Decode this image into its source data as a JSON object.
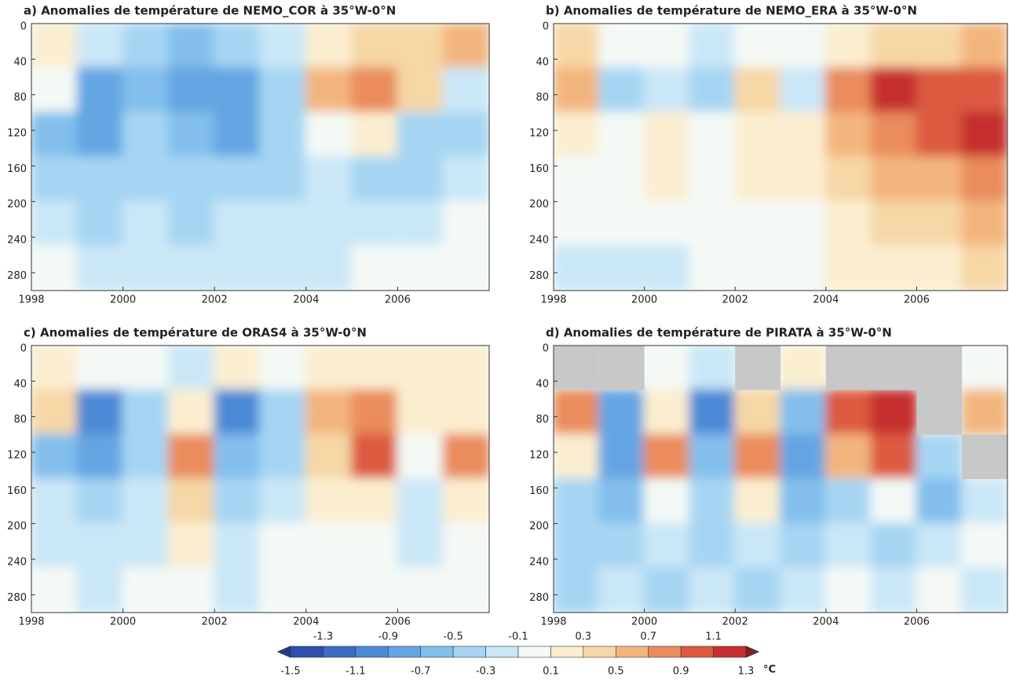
{
  "chart_data": [
    {
      "type": "heatmap",
      "title": "a) Anomalies de température de NEMO_COR à 35°W-0°N",
      "x": [
        1998.5,
        1999.5,
        2000.5,
        2001.5,
        2002.5,
        2003.5,
        2004.5,
        2005.5,
        2006.5,
        2007.5
      ],
      "y": [
        25,
        75,
        125,
        175,
        225,
        275
      ],
      "values": [
        [
          0.3,
          -0.1,
          -0.3,
          -0.5,
          -0.3,
          -0.1,
          0.3,
          0.5,
          0.5,
          0.7
        ],
        [
          0.1,
          -0.7,
          -0.5,
          -0.7,
          -0.7,
          -0.3,
          0.7,
          0.9,
          0.5,
          -0.1
        ],
        [
          -0.5,
          -0.7,
          -0.3,
          -0.5,
          -0.7,
          -0.3,
          0.1,
          0.3,
          -0.3,
          -0.3
        ],
        [
          -0.3,
          -0.3,
          -0.3,
          -0.3,
          -0.3,
          -0.3,
          -0.1,
          -0.3,
          -0.3,
          -0.1
        ],
        [
          -0.1,
          -0.3,
          -0.1,
          -0.3,
          -0.1,
          -0.1,
          -0.1,
          -0.1,
          -0.1,
          0.1
        ],
        [
          0.1,
          -0.1,
          -0.1,
          -0.1,
          -0.1,
          -0.1,
          -0.1,
          0.1,
          0.1,
          0.1
        ]
      ],
      "xlim": [
        1998,
        2008
      ],
      "ylim": [
        0,
        300
      ],
      "y_inverted": true,
      "xticks": [
        1998,
        2000,
        2002,
        2004,
        2006
      ],
      "yticks": [
        0,
        40,
        80,
        120,
        160,
        200,
        240,
        280
      ]
    },
    {
      "type": "heatmap",
      "title": "b) Anomalies de température de NEMO_ERA à 35°W-0°N",
      "x": [
        1998.5,
        1999.5,
        2000.5,
        2001.5,
        2002.5,
        2003.5,
        2004.5,
        2005.5,
        2006.5,
        2007.5
      ],
      "y": [
        25,
        75,
        125,
        175,
        225,
        275
      ],
      "values": [
        [
          0.5,
          0.1,
          0.1,
          -0.1,
          0.1,
          0.1,
          0.3,
          0.5,
          0.5,
          0.7
        ],
        [
          0.7,
          -0.3,
          -0.1,
          -0.3,
          0.5,
          -0.1,
          0.9,
          1.3,
          1.1,
          1.1
        ],
        [
          0.3,
          0.1,
          0.3,
          0.1,
          0.3,
          0.3,
          0.7,
          0.9,
          1.1,
          1.3
        ],
        [
          0.1,
          0.1,
          0.3,
          0.1,
          0.3,
          0.3,
          0.5,
          0.7,
          0.7,
          0.9
        ],
        [
          0.1,
          0.1,
          0.1,
          0.1,
          0.1,
          0.1,
          0.3,
          0.5,
          0.5,
          0.7
        ],
        [
          -0.1,
          -0.1,
          -0.1,
          0.1,
          0.1,
          0.1,
          0.3,
          0.3,
          0.3,
          0.5
        ]
      ],
      "xlim": [
        1998,
        2008
      ],
      "ylim": [
        0,
        300
      ],
      "y_inverted": true,
      "xticks": [
        1998,
        2000,
        2002,
        2004,
        2006
      ],
      "yticks": [
        0,
        40,
        80,
        120,
        160,
        200,
        240,
        280
      ]
    },
    {
      "type": "heatmap",
      "title": "c) Anomalies de température de ORAS4 à 35°W-0°N",
      "x": [
        1998.5,
        1999.5,
        2000.5,
        2001.5,
        2002.5,
        2003.5,
        2004.5,
        2005.5,
        2006.5,
        2007.5
      ],
      "y": [
        25,
        75,
        125,
        175,
        225,
        275
      ],
      "values": [
        [
          0.3,
          0.1,
          0.1,
          -0.1,
          0.3,
          0.1,
          0.3,
          0.3,
          0.3,
          0.3
        ],
        [
          0.5,
          -0.9,
          -0.3,
          0.3,
          -0.9,
          -0.3,
          0.7,
          0.9,
          0.3,
          0.3
        ],
        [
          -0.5,
          -0.7,
          -0.3,
          0.9,
          -0.5,
          -0.3,
          0.5,
          1.1,
          0.1,
          0.9
        ],
        [
          -0.1,
          -0.3,
          -0.1,
          0.5,
          -0.3,
          -0.1,
          0.3,
          0.3,
          -0.1,
          0.3
        ],
        [
          -0.1,
          -0.1,
          -0.1,
          0.3,
          -0.1,
          0.1,
          0.1,
          0.1,
          -0.1,
          0.1
        ],
        [
          0.1,
          -0.1,
          0.1,
          0.1,
          -0.1,
          0.1,
          0.1,
          0.1,
          0.1,
          0.1
        ]
      ],
      "xlim": [
        1998,
        2008
      ],
      "ylim": [
        0,
        300
      ],
      "y_inverted": true,
      "xticks": [
        1998,
        2000,
        2002,
        2004,
        2006
      ],
      "yticks": [
        0,
        40,
        80,
        120,
        160,
        200,
        240,
        280
      ]
    },
    {
      "type": "heatmap",
      "title": "d) Anomalies de température de PIRATA à 35°W-0°N",
      "x": [
        1998.5,
        1999.5,
        2000.5,
        2001.5,
        2002.5,
        2003.5,
        2004.5,
        2005.5,
        2006.5,
        2007.5
      ],
      "y": [
        25,
        75,
        125,
        175,
        225,
        275
      ],
      "values": [
        [
          null,
          null,
          0.1,
          -0.1,
          null,
          0.3,
          null,
          null,
          null,
          0.1
        ],
        [
          0.9,
          -0.7,
          0.3,
          -0.9,
          0.5,
          -0.5,
          1.1,
          1.3,
          null,
          0.7
        ],
        [
          0.3,
          -0.7,
          0.9,
          -0.5,
          0.9,
          -0.7,
          0.7,
          1.1,
          -0.3,
          null
        ],
        [
          -0.3,
          -0.5,
          0.1,
          -0.3,
          0.3,
          -0.5,
          -0.3,
          0.1,
          -0.5,
          -0.1
        ],
        [
          -0.3,
          -0.3,
          -0.1,
          -0.3,
          -0.1,
          -0.3,
          -0.1,
          -0.3,
          -0.1,
          0.1
        ],
        [
          -0.3,
          -0.1,
          -0.3,
          -0.1,
          -0.3,
          -0.1,
          0.1,
          -0.1,
          0.1,
          -0.1
        ]
      ],
      "xlim": [
        1998,
        2008
      ],
      "ylim": [
        0,
        300
      ],
      "y_inverted": true,
      "xticks": [
        1998,
        2000,
        2002,
        2004,
        2006
      ],
      "yticks": [
        0,
        40,
        80,
        120,
        160,
        200,
        240,
        280
      ]
    }
  ],
  "colorbar": {
    "levels": [
      -1.5,
      -1.3,
      -1.1,
      -0.9,
      -0.7,
      -0.5,
      -0.3,
      -0.1,
      0.1,
      0.3,
      0.5,
      0.7,
      0.9,
      1.1,
      1.3
    ],
    "unit": "°C",
    "colors": [
      "#233a8f",
      "#2d4fae",
      "#3b6cc6",
      "#4c89d6",
      "#63a5e2",
      "#82bfec",
      "#a6d5f3",
      "#cae7f7",
      "#f4f9f6",
      "#fbeed0",
      "#f7d7a6",
      "#f3b57e",
      "#ea8c5c",
      "#dc5a40",
      "#c52f2e",
      "#8e1a1f"
    ]
  }
}
